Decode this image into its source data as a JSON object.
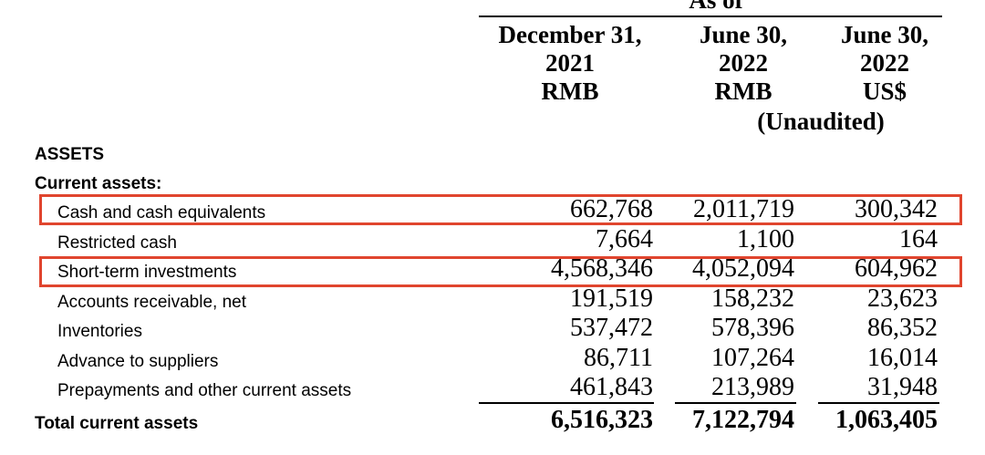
{
  "header": {
    "as_of": "As of",
    "columns": [
      [
        "December 31,",
        "2021",
        "RMB"
      ],
      [
        "June 30,",
        "2022",
        "RMB"
      ],
      [
        "June 30,",
        "2022",
        "US$"
      ]
    ],
    "note": "(Unaudited)"
  },
  "sections": {
    "title": "ASSETS",
    "subtitle": "Current assets:"
  },
  "table": {
    "rows": [
      [
        "Cash and cash equivalents",
        "662,768",
        "2,011,719",
        "300,342"
      ],
      [
        "Restricted cash",
        "7,664",
        "1,100",
        "164"
      ],
      [
        "Short-term investments",
        "4,568,346",
        "4,052,094",
        "604,962"
      ],
      [
        "Accounts receivable, net",
        "191,519",
        "158,232",
        "23,623"
      ],
      [
        "Inventories",
        "537,472",
        "578,396",
        "86,352"
      ],
      [
        "Advance to suppliers",
        "86,711",
        "107,264",
        "16,014"
      ],
      [
        "Prepayments and other current assets",
        "461,843",
        "213,989",
        "31,948"
      ]
    ],
    "total": [
      "Total current assets",
      "6,516,323",
      "7,122,794",
      "1,063,405"
    ]
  }
}
